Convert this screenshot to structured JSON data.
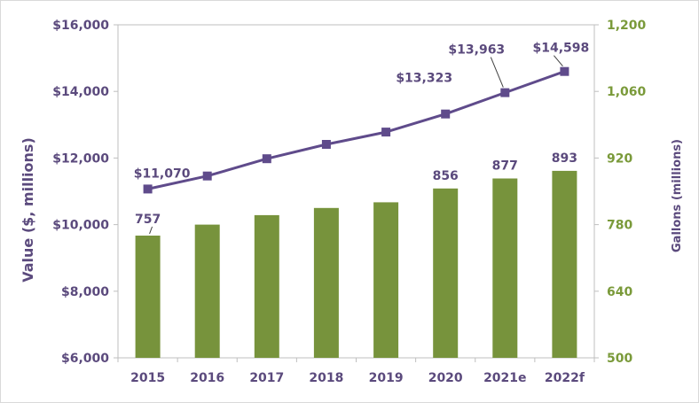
{
  "chart_data": {
    "type": "bar",
    "categories": [
      "2015",
      "2016",
      "2017",
      "2018",
      "2019",
      "2020",
      "2021e",
      "2022f"
    ],
    "series": [
      {
        "kind": "bar",
        "axis": "right",
        "color": "#77933c",
        "values": [
          757,
          780,
          800,
          815,
          827,
          856,
          877,
          893
        ],
        "labels": [
          "757",
          "",
          "",
          "",
          "",
          "856",
          "877",
          "893"
        ]
      },
      {
        "kind": "line",
        "axis": "left",
        "color": "#5f4b8b",
        "marker": "square",
        "values": [
          11070,
          11460,
          11980,
          12410,
          12780,
          13323,
          13963,
          14598
        ],
        "labels": [
          "$11,070",
          "",
          "",
          "",
          "",
          "$13,323",
          "$13,963",
          "$14,598"
        ]
      }
    ],
    "ylabel": "Value ($, millions)",
    "ylabel_right": "Gallons (millions)",
    "ylim": [
      6000,
      16000
    ],
    "ylim_right": [
      500,
      1200
    ],
    "yticks": [
      "$6,000",
      "$8,000",
      "$10,000",
      "$12,000",
      "$14,000",
      "$16,000"
    ],
    "yticks_right": [
      "500",
      "640",
      "780",
      "920",
      "1,060",
      "1,200"
    ],
    "grid": false,
    "legend": "none"
  }
}
